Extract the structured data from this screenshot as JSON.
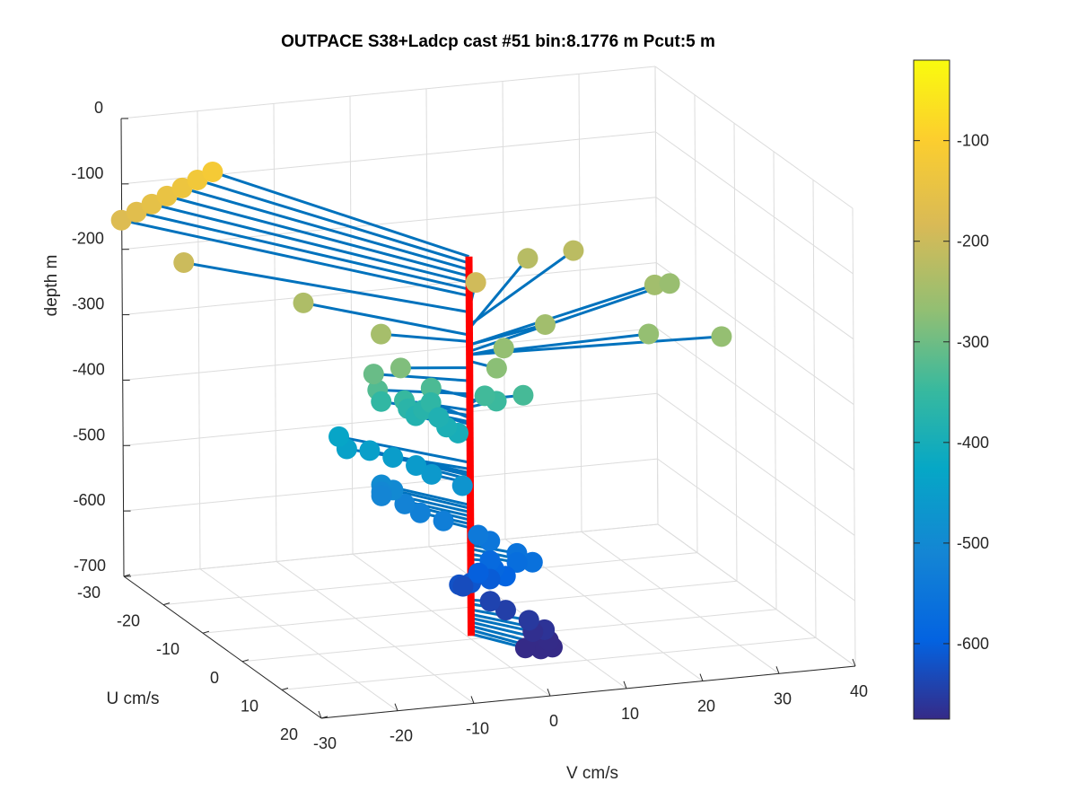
{
  "chart_data": {
    "type": "scatter",
    "title": "OUTPACE S38+Ladcp cast #51 bin:8.1776 m  Pcut:5 m",
    "xlabel": "U cm/s",
    "ylabel": "V cm/s",
    "zlabel": "depth m",
    "xlim": [
      -30,
      20
    ],
    "ylim": [
      -30,
      40
    ],
    "zlim": [
      -700,
      0
    ],
    "x_ticks": [
      "-30",
      "-20",
      "-10",
      "0",
      "10",
      "20"
    ],
    "y_ticks": [
      "-30",
      "-20",
      "-10",
      "0",
      "10",
      "20",
      "30",
      "40"
    ],
    "z_ticks": [
      "0",
      "-100",
      "-200",
      "-300",
      "-400",
      "-500",
      "-600",
      "-700"
    ],
    "grid": true,
    "colorbar": {
      "ticks": [
        "-100",
        "-200",
        "-300",
        "-400",
        "-500",
        "-600"
      ],
      "range": [
        -675,
        -20
      ],
      "colormap": "parula"
    },
    "colors": {
      "stick": "#0072bd",
      "mast": "#ff0000"
    },
    "mast": {
      "u": 0,
      "v": 0,
      "depth_top": -115,
      "depth_bottom": -695
    },
    "stick_origin": {
      "u": 0,
      "v": 0
    },
    "series": [
      {
        "name": "",
        "points": [
          {
            "depth": -115,
            "u": -34,
            "v": -16
          },
          {
            "depth": -125,
            "u": -34,
            "v": -18
          },
          {
            "depth": -135,
            "u": -34,
            "v": -20
          },
          {
            "depth": -145,
            "u": -34,
            "v": -22
          },
          {
            "depth": -155,
            "u": -34,
            "v": -24
          },
          {
            "depth": -165,
            "u": -34,
            "v": -26
          },
          {
            "depth": -175,
            "u": -34,
            "v": -28
          },
          {
            "depth": -200,
            "u": -24,
            "v": -25
          },
          {
            "depth": -235,
            "u": -15,
            "v": -14
          },
          {
            "depth": -245,
            "u": -5,
            "v": -9
          },
          {
            "depth": -195,
            "u": -8,
            "v": 5
          },
          {
            "depth": -225,
            "u": -20,
            "v": 18
          },
          {
            "depth": -220,
            "u": -20,
            "v": 24
          },
          {
            "depth": -250,
            "u": -13,
            "v": 31
          },
          {
            "depth": -260,
            "u": -15,
            "v": 34
          },
          {
            "depth": -250,
            "u": -4,
            "v": 12
          },
          {
            "depth": -265,
            "u": -1,
            "v": 24
          },
          {
            "depth": -265,
            "u": 2,
            "v": 32
          },
          {
            "depth": -265,
            "u": -1,
            "v": 5
          },
          {
            "depth": -275,
            "u": 3,
            "v": 2
          },
          {
            "depth": -285,
            "u": -2,
            "v": -8
          },
          {
            "depth": -305,
            "u": -5,
            "v": -10
          },
          {
            "depth": -325,
            "u": -4,
            "v": -10
          },
          {
            "depth": -330,
            "u": -4,
            "v": -3
          },
          {
            "depth": -335,
            "u": 0,
            "v": 7
          },
          {
            "depth": -340,
            "u": -2,
            "v": 3
          },
          {
            "depth": -345,
            "u": -1,
            "v": 4
          },
          {
            "depth": -350,
            "u": -5,
            "v": -6
          },
          {
            "depth": -358,
            "u": -7,
            "v": -8
          },
          {
            "depth": -362,
            "u": -6,
            "v": -2
          },
          {
            "depth": -368,
            "u": -6,
            "v": -5
          },
          {
            "depth": -372,
            "u": -6,
            "v": -3
          },
          {
            "depth": -380,
            "u": -6,
            "v": -4
          },
          {
            "depth": -386,
            "u": -6,
            "v": -1
          },
          {
            "depth": -392,
            "u": -4,
            "v": -1
          },
          {
            "depth": -398,
            "u": -3,
            "v": 0
          },
          {
            "depth": -430,
            "u": -12,
            "v": -11
          },
          {
            "depth": -440,
            "u": -10,
            "v": -11
          },
          {
            "depth": -446,
            "u": -10,
            "v": -8
          },
          {
            "depth": -450,
            "u": -8,
            "v": -6
          },
          {
            "depth": -456,
            "u": -6,
            "v": -4
          },
          {
            "depth": -462,
            "u": -4,
            "v": -3
          },
          {
            "depth": -474,
            "u": -2,
            "v": 0
          },
          {
            "depth": -495,
            "u": -9,
            "v": -7
          },
          {
            "depth": -500,
            "u": -8,
            "v": -6
          },
          {
            "depth": -506,
            "u": -9,
            "v": -7
          },
          {
            "depth": -512,
            "u": -9,
            "v": -7
          },
          {
            "depth": -518,
            "u": -7,
            "v": -5
          },
          {
            "depth": -524,
            "u": -5,
            "v": -4
          },
          {
            "depth": -530,
            "u": -3,
            "v": -2
          },
          {
            "depth": -542,
            "u": 0,
            "v": 1
          },
          {
            "depth": -548,
            "u": 1,
            "v": 2
          },
          {
            "depth": -556,
            "u": 4,
            "v": 4
          },
          {
            "depth": -562,
            "u": 6,
            "v": 5
          },
          {
            "depth": -570,
            "u": 4,
            "v": 4
          },
          {
            "depth": -578,
            "u": 1,
            "v": 2
          },
          {
            "depth": -586,
            "u": 2,
            "v": 2
          },
          {
            "depth": -594,
            "u": 3,
            "v": 3
          },
          {
            "depth": -600,
            "u": 0,
            "v": 1
          },
          {
            "depth": -606,
            "u": 1,
            "v": 2
          },
          {
            "depth": -614,
            "u": 0,
            "v": 0
          },
          {
            "depth": -620,
            "u": -1,
            "v": -1
          },
          {
            "depth": -628,
            "u": -2,
            "v": 0
          },
          {
            "depth": -640,
            "u": 1,
            "v": 2
          },
          {
            "depth": -646,
            "u": 3,
            "v": 3
          },
          {
            "depth": -655,
            "u": 5,
            "v": 5
          },
          {
            "depth": -662,
            "u": 7,
            "v": 6
          },
          {
            "depth": -668,
            "u": 6,
            "v": 5
          },
          {
            "depth": -674,
            "u": 8,
            "v": 6
          },
          {
            "depth": -680,
            "u": 9,
            "v": 6
          },
          {
            "depth": -686,
            "u": 8,
            "v": 5
          },
          {
            "depth": -692,
            "u": 6,
            "v": 4
          }
        ]
      }
    ]
  }
}
